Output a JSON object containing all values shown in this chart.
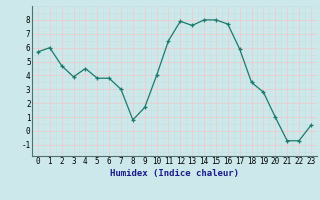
{
  "x": [
    0,
    1,
    2,
    3,
    4,
    5,
    6,
    7,
    8,
    9,
    10,
    11,
    12,
    13,
    14,
    15,
    16,
    17,
    18,
    19,
    20,
    21,
    22,
    23
  ],
  "y": [
    5.7,
    6.0,
    4.7,
    3.9,
    4.5,
    3.8,
    3.8,
    3.0,
    0.8,
    1.7,
    4.0,
    6.5,
    7.9,
    7.6,
    8.0,
    8.0,
    7.7,
    5.9,
    3.5,
    2.8,
    1.0,
    -0.7,
    -0.7,
    0.4
  ],
  "xlabel": "Humidex (Indice chaleur)",
  "xlim": [
    -0.5,
    23.5
  ],
  "ylim": [
    -1.8,
    9.0
  ],
  "yticks": [
    -1,
    0,
    1,
    2,
    3,
    4,
    5,
    6,
    7,
    8
  ],
  "xticks": [
    0,
    1,
    2,
    3,
    4,
    5,
    6,
    7,
    8,
    9,
    10,
    11,
    12,
    13,
    14,
    15,
    16,
    17,
    18,
    19,
    20,
    21,
    22,
    23
  ],
  "line_color": "#1a7a6e",
  "marker": "+",
  "bg_color": "#cce8ea",
  "grid_major_color": "#f0c8c8",
  "grid_minor_color": "#c8dede",
  "tick_fontsize": 5.5,
  "xlabel_fontsize": 6.5,
  "xlabel_color": "#1a1a8c",
  "linewidth": 0.9,
  "markersize": 3.5,
  "markeredgewidth": 0.9
}
